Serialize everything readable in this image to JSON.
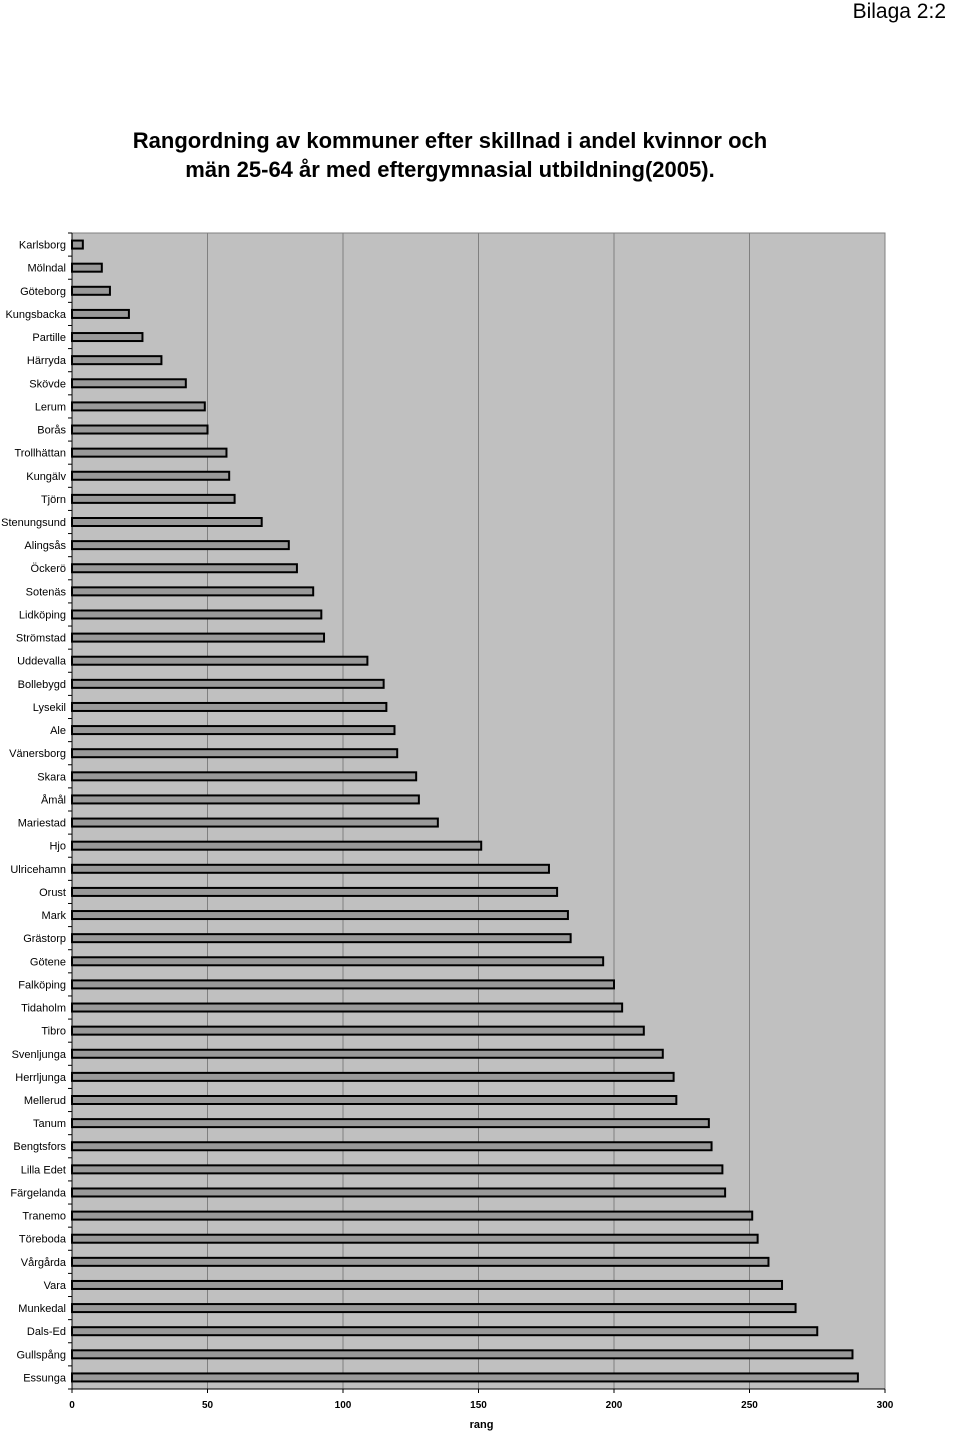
{
  "page_label": "Bilaga 2:2",
  "title_lines": [
    "Rangordning av kommuner efter skillnad i andel kvinnor och",
    "män 25-64 år med eftergymnasial utbildning(2005)."
  ],
  "chart_data": {
    "type": "bar",
    "orientation": "horizontal",
    "title": "Rangordning av kommuner efter skillnad i andel kvinnor och män 25-64 år med eftergymnasial utbildning(2005).",
    "xlabel": "rang",
    "ylabel": "",
    "xlim": [
      0,
      300
    ],
    "xticks": [
      0,
      50,
      100,
      150,
      200,
      250,
      300
    ],
    "grid": "vertical",
    "plot_background": "#c0c0c0",
    "bar_fill": "#999999",
    "bar_stroke": "#000000",
    "categories": [
      "Karlsborg",
      "Mölndal",
      "Göteborg",
      "Kungsbacka",
      "Partille",
      "Härryda",
      "Skövde",
      "Lerum",
      "Borås",
      "Trollhättan",
      "Kungälv",
      "Tjörn",
      "Stenungsund",
      "Alingsås",
      "Öckerö",
      "Sotenäs",
      "Lidköping",
      "Strömstad",
      "Uddevalla",
      "Bollebygd",
      "Lysekil",
      "Ale",
      "Vänersborg",
      "Skara",
      "Åmål",
      "Mariestad",
      "Hjo",
      "Ulricehamn",
      "Orust",
      "Mark",
      "Grästorp",
      "Götene",
      "Falköping",
      "Tidaholm",
      "Tibro",
      "Svenljunga",
      "Herrljunga",
      "Mellerud",
      "Tanum",
      "Bengtsfors",
      "Lilla Edet",
      "Färgelanda",
      "Tranemo",
      "Töreboda",
      "Vårgårda",
      "Vara",
      "Munkedal",
      "Dals-Ed",
      "Gullspång",
      "Essunga"
    ],
    "values": [
      4,
      11,
      14,
      21,
      26,
      33,
      42,
      49,
      50,
      57,
      58,
      60,
      70,
      80,
      83,
      89,
      92,
      93,
      109,
      115,
      116,
      119,
      120,
      127,
      128,
      135,
      151,
      176,
      179,
      183,
      184,
      196,
      200,
      203,
      211,
      218,
      222,
      223,
      235,
      236,
      240,
      241,
      251,
      253,
      257,
      262,
      267,
      275,
      288,
      290
    ]
  }
}
